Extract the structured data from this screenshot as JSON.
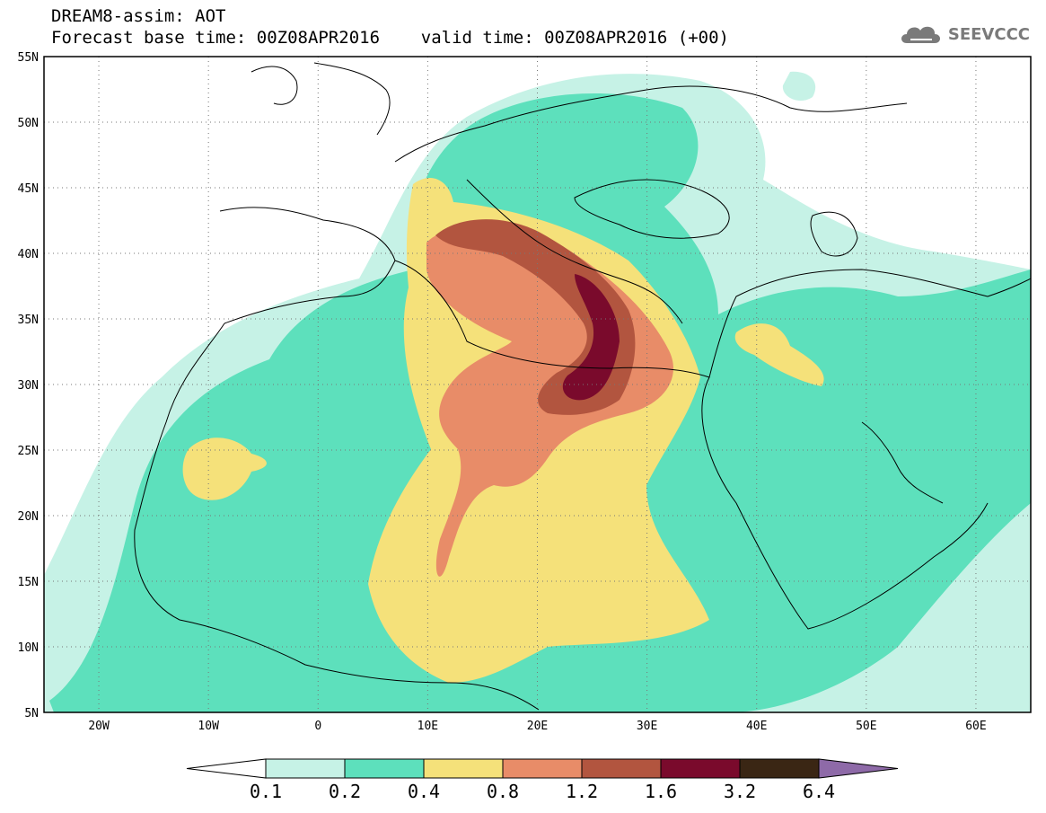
{
  "header": {
    "title_line1": "DREAM8-assim: AOT",
    "title_line2": "Forecast base time: 00Z08APR2016    valid time: 00Z08APR2016 (+00)"
  },
  "logo": {
    "text": "SEEVCCC",
    "icon": "cloud-icon"
  },
  "map": {
    "lat_labels": [
      "55N",
      "50N",
      "45N",
      "40N",
      "35N",
      "30N",
      "25N",
      "20N",
      "15N",
      "10N",
      "5N"
    ],
    "lon_labels": [
      "20W",
      "10W",
      "0",
      "10E",
      "20E",
      "30E",
      "40E",
      "50E",
      "60E"
    ],
    "variable": "AOT",
    "region": {
      "lon_min": -25,
      "lon_max": 65,
      "lat_min": 5,
      "lat_max": 55
    }
  },
  "colorbar": {
    "thresholds": [
      "0.1",
      "0.2",
      "0.4",
      "0.8",
      "1.2",
      "1.6",
      "3.2",
      "6.4"
    ],
    "colors": [
      "#c6f2e6",
      "#5de0bc",
      "#f5e17a",
      "#e88c68",
      "#b2553f",
      "#7a0a2c",
      "#3a2614",
      "#8e6aa8"
    ],
    "under_color": "#ffffff"
  }
}
